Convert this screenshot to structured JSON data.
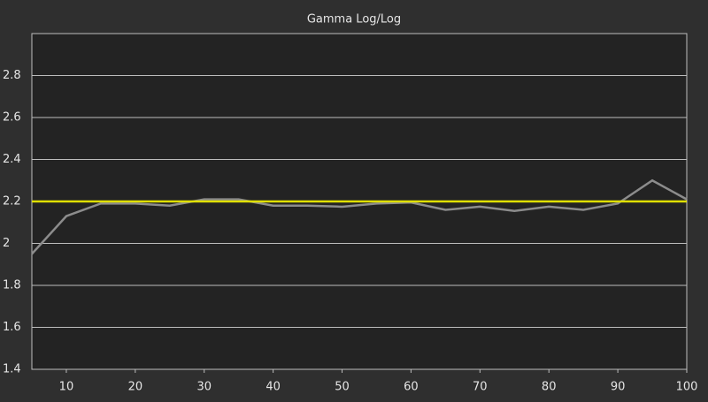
{
  "chart_data": {
    "type": "line",
    "title": "Gamma Log/Log",
    "x": [
      5,
      10,
      15,
      20,
      25,
      30,
      35,
      40,
      45,
      50,
      55,
      60,
      65,
      70,
      75,
      80,
      85,
      90,
      95,
      100
    ],
    "series": [
      {
        "color": "#8c8c8c",
        "values": [
          1.95,
          2.13,
          2.19,
          2.19,
          2.18,
          2.21,
          2.21,
          2.18,
          2.18,
          2.175,
          2.19,
          2.195,
          2.16,
          2.175,
          2.155,
          2.175,
          2.16,
          2.19,
          2.3,
          2.21
        ]
      },
      {
        "color": "#e0e000",
        "values": [
          2.2,
          2.2,
          2.2,
          2.2,
          2.2,
          2.2,
          2.2,
          2.2,
          2.2,
          2.2,
          2.2,
          2.2,
          2.2,
          2.2,
          2.2,
          2.2,
          2.2,
          2.2,
          2.2,
          2.2
        ]
      }
    ],
    "xlim": [
      5,
      100
    ],
    "xticks": [
      10,
      20,
      30,
      40,
      50,
      60,
      70,
      80,
      90,
      100
    ],
    "ylim": [
      1.4,
      3.0
    ],
    "yticks": [
      1.4,
      1.6,
      1.8,
      2,
      2.2,
      2.4,
      2.6,
      2.8
    ],
    "grid": true
  }
}
